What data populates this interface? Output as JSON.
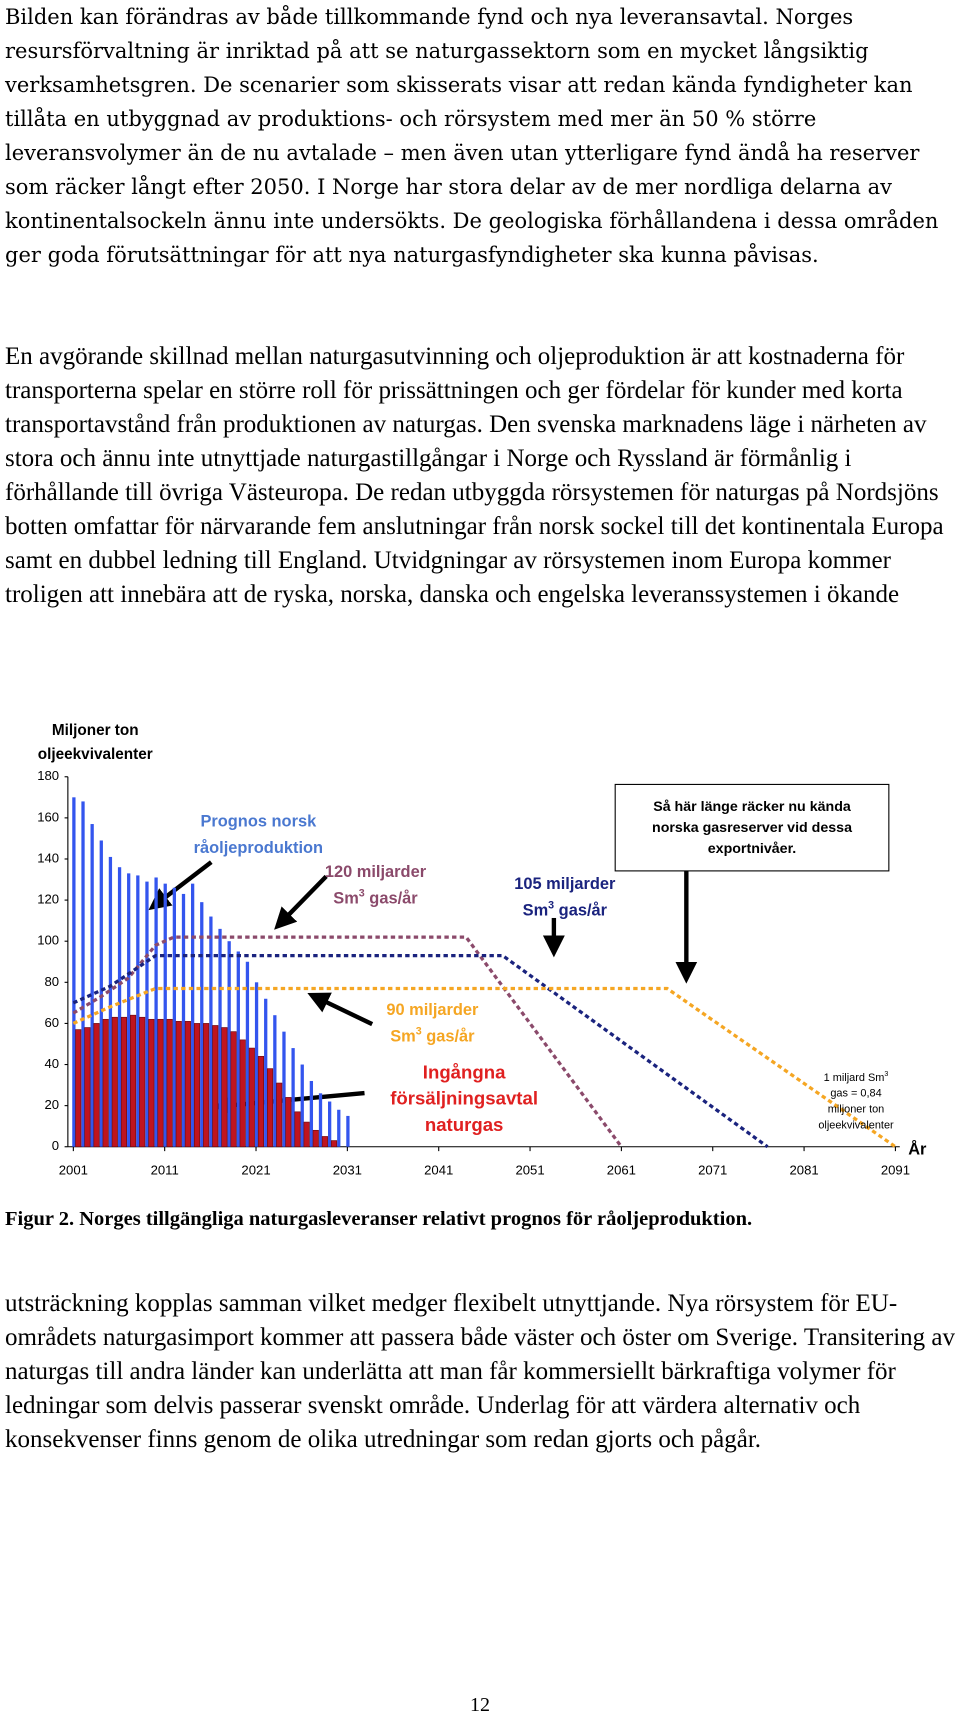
{
  "p1": "Bilden kan förändras av både tillkommande fynd och nya leveransavtal. Norges resursförvaltning är inriktad på att se naturgassektorn som en mycket långsiktig verksamhetsgren. De scenarier som skisserats visar att redan kända fyndigheter kan tillåta en utbyggnad av produktions- och rörsystem med mer än 50 % större leveransvolymer än de nu avtalade – men även utan ytterligare fynd ändå ha reserver som räcker långt efter 2050. I Norge har stora delar av de mer nordliga delarna av kontinentalsockeln ännu inte undersökts. De geologiska förhållandena i dessa områden ger goda förutsättningar för att nya naturgasfyndigheter ska kunna påvisas.",
  "p2": "En avgörande skillnad mellan naturgasutvinning och oljeproduktion är att kostnaderna för transporterna spelar en större roll för prissättningen och ger fördelar för kunder med korta transportavstånd från produktionen av naturgas. Den svenska marknadens läge i närheten av stora och ännu inte utnyttjade naturgastillgångar i Norge och Ryssland är förmånlig i förhållande till övriga Västeuropa. De redan utbyggda rörsystemen för naturgas på Nordsjöns botten omfattar för närvarande fem anslutningar från norsk sockel till det kontinentala Europa samt en dubbel ledning till England. Utvidgningar av rörsystemen inom Europa kommer troligen att innebära att de ryska, norska, danska och engelska leveranssystemen i ökande",
  "chart_data": {
    "type": "combo",
    "y_label": [
      "Miljoner ton",
      "oljeekvivalenter"
    ],
    "x_label": "År",
    "xlim": [
      2001,
      2091
    ],
    "xticks": [
      2001,
      2011,
      2021,
      2031,
      2041,
      2051,
      2061,
      2071,
      2081,
      2091
    ],
    "ylim": [
      0,
      180
    ],
    "yticks": [
      0,
      20,
      40,
      60,
      80,
      100,
      120,
      140,
      160,
      180
    ],
    "series": [
      {
        "type": "bar",
        "color": "#3355ee",
        "label": [
          [
            "Prognos norsk"
          ],
          [
            "råoljeproduktion"
          ]
        ],
        "x": [
          2001,
          2002,
          2003,
          2004,
          2005,
          2006,
          2007,
          2008,
          2009,
          2010,
          2011,
          2012,
          2013,
          2014,
          2015,
          2016,
          2017,
          2018,
          2019,
          2020,
          2021,
          2022,
          2023,
          2024,
          2025,
          2026,
          2027,
          2028,
          2029,
          2030,
          2031
        ],
        "values": [
          170,
          168,
          157,
          149,
          141,
          136,
          133,
          132,
          129,
          131,
          128,
          126,
          123,
          128,
          119,
          112,
          106,
          100,
          95,
          90,
          80,
          72,
          64,
          56,
          48,
          40,
          32,
          26,
          22,
          18,
          15
        ]
      },
      {
        "type": "bar",
        "color": "#c0141e",
        "label": [
          [
            "Ingångna"
          ],
          [
            "försäljningsavtal"
          ],
          [
            "naturgas"
          ]
        ],
        "x": [
          2001,
          2002,
          2003,
          2004,
          2005,
          2006,
          2007,
          2008,
          2009,
          2010,
          2011,
          2012,
          2013,
          2014,
          2015,
          2016,
          2017,
          2018,
          2019,
          2020,
          2021,
          2022,
          2023,
          2024,
          2025,
          2026,
          2027,
          2028,
          2029
        ],
        "values": [
          57,
          58,
          60,
          62,
          63,
          63,
          64,
          63,
          62,
          62,
          62,
          61,
          61,
          60,
          60,
          59,
          58,
          56,
          52,
          48,
          44,
          38,
          31,
          24,
          17,
          12,
          8,
          5,
          3
        ]
      },
      {
        "type": "line",
        "color": "#8b4a6b",
        "label": [
          [
            "120 miljarder"
          ],
          [
            "Sm",
            "3",
            " gas/år"
          ]
        ],
        "x": [
          2001,
          2004,
          2007,
          2010,
          2012,
          2044,
          2061
        ],
        "values": [
          65,
          73,
          82,
          98,
          102,
          102,
          0
        ]
      },
      {
        "type": "line",
        "color": "#1a237e",
        "label": [
          [
            "105 miljarder"
          ],
          [
            "Sm",
            "3",
            " gas/år"
          ]
        ],
        "x": [
          2001,
          2005,
          2010,
          2048,
          2077
        ],
        "values": [
          70,
          78,
          93,
          93,
          0
        ]
      },
      {
        "type": "line",
        "color": "#f5a623",
        "label": [
          [
            "90 miljarder"
          ],
          [
            "Sm",
            "3",
            " gas/år"
          ]
        ],
        "x": [
          2001,
          2005,
          2010,
          2066,
          2091
        ],
        "values": [
          60,
          68,
          77,
          77,
          0
        ]
      }
    ],
    "box": [
      "Så här länge räcker nu kända",
      "norska gasreserver vid dessa",
      "exportnivåer."
    ],
    "note": [
      [
        "1 miljard Sm",
        "3"
      ],
      [
        "gas = 0,84"
      ],
      [
        "miljoner ton"
      ],
      [
        "oljeekvivalenter"
      ]
    ]
  },
  "caption": "Figur 2. Norges tillgängliga naturgasleveranser relativt prognos för råoljeproduktion.",
  "p3": "utsträckning kopplas samman vilket medger flexibelt utnyttjande. Nya rörsystem för EU-områdets naturgasimport kommer att passera både väster och öster om Sverige. Transitering av naturgas till andra länder kan underlätta att man får kommersiellt bärkraftiga volymer för ledningar som delvis passerar svenskt område. Underlag för att värdera alternativ och konsekvenser finns genom de olika utredningar som redan gjorts och pågår.",
  "page_number": "12"
}
